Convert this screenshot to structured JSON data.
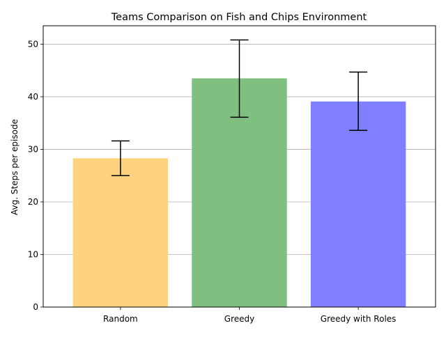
{
  "chart_data": {
    "type": "bar",
    "title": "Teams Comparison on Fish and Chips Environment",
    "xlabel": "",
    "ylabel": "Avg. Steps per episode",
    "categories": [
      "Random",
      "Greedy",
      "Greedy with Roles"
    ],
    "values": [
      28.3,
      43.5,
      39.1
    ],
    "error_low": [
      25.0,
      36.1,
      33.6
    ],
    "error_high": [
      31.6,
      50.8,
      44.7
    ],
    "colors": [
      "#ffd27f",
      "#7fbf7f",
      "#7f7fff"
    ],
    "ylim": [
      0,
      53.5
    ],
    "yticks": [
      0,
      10,
      20,
      30,
      40,
      50
    ],
    "grid": "y"
  }
}
